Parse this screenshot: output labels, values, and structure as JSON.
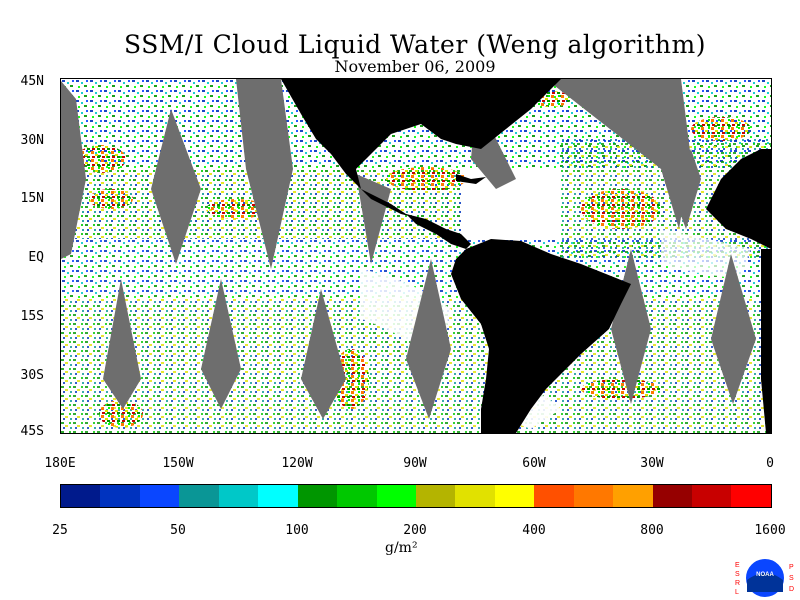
{
  "map": {
    "title": "SSM/I Cloud Liquid Water (Weng algorithm)",
    "date": "November 06, 2009",
    "lat_labels": [
      "45N",
      "30N",
      "15N",
      "EQ",
      "15S",
      "30S",
      "45S"
    ],
    "lon_labels": [
      "180E",
      "150W",
      "120W",
      "90W",
      "60W",
      "30W",
      "0"
    ],
    "lat_range": [
      -45,
      45
    ],
    "lon_range": [
      -180,
      0
    ],
    "colors": {
      "land": "#000000",
      "missing_swath_gap": "#6e6e6e",
      "ocean_clear": "#ffffff",
      "frame": "#000000"
    }
  },
  "legend": {
    "tick_labels": [
      "25",
      "50",
      "100",
      "200",
      "400",
      "800",
      "1600"
    ],
    "unit": "g/m²",
    "colors": [
      "#001a8c",
      "#0033bf",
      "#0a46ff",
      "#0a9696",
      "#00c8c8",
      "#00ffff",
      "#009600",
      "#00c800",
      "#00ff00",
      "#b4b400",
      "#e1e100",
      "#ffff00",
      "#ff5000",
      "#ff7800",
      "#ffa000",
      "#960000",
      "#c80000",
      "#ff0000"
    ]
  },
  "logo": {
    "left_letters": "ESRL",
    "right_letters": "PSD",
    "text": "NOAA"
  }
}
